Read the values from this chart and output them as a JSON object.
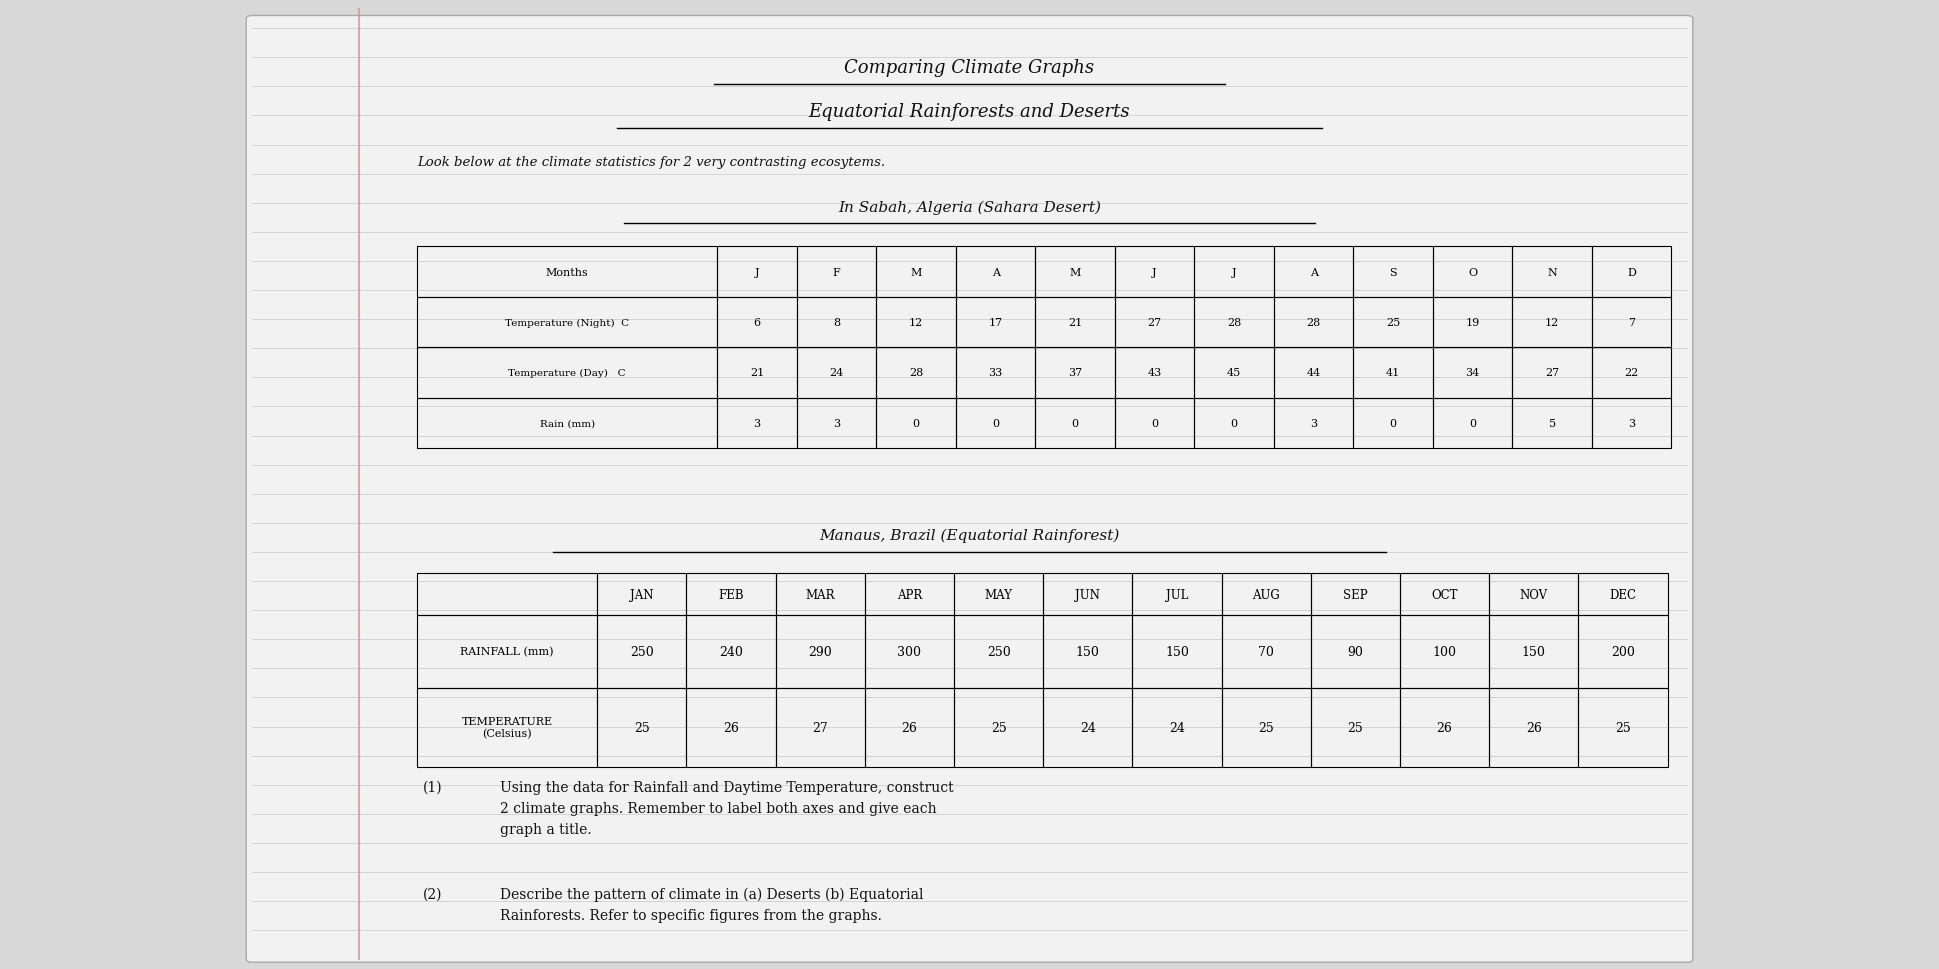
{
  "title1": "Comparing Climate Graphs",
  "title2": "Equatorial Rainforests and Deserts",
  "subtitle": "Look below at the climate statistics for 2 very contrasting ecosytems.",
  "section1_title": "In Sabah, Algeria (Sahara Desert)",
  "section2_title": "Manaus, Brazil (Equatorial Rainforest)",
  "algeria_months": [
    "J",
    "F",
    "M",
    "A",
    "M",
    "J",
    "J",
    "A",
    "S",
    "O",
    "N",
    "D"
  ],
  "algeria_temp_night": [
    6,
    8,
    12,
    17,
    21,
    27,
    28,
    28,
    25,
    19,
    12,
    7
  ],
  "algeria_temp_day": [
    21,
    24,
    28,
    33,
    37,
    43,
    45,
    44,
    41,
    34,
    27,
    22
  ],
  "algeria_rain": [
    3,
    3,
    0,
    0,
    0,
    0,
    0,
    3,
    0,
    0,
    5,
    3
  ],
  "manaus_months": [
    "JAN",
    "FEB",
    "MAR",
    "APR",
    "MAY",
    "JUN",
    "JUL",
    "AUG",
    "SEP",
    "OCT",
    "NOV",
    "DEC"
  ],
  "manaus_rainfall": [
    250,
    240,
    290,
    300,
    250,
    150,
    150,
    70,
    90,
    100,
    150,
    200
  ],
  "manaus_temperature": [
    25,
    26,
    27,
    26,
    25,
    24,
    24,
    25,
    25,
    26,
    26,
    25
  ],
  "question1_num": "(1)",
  "question1_text": "Using the data for Rainfall and Daytime Temperature, construct\n2 climate graphs. Remember to label both axes and give each\ngraph a title.",
  "question2_num": "(2)",
  "question2_text": "Describe the pattern of climate in (a) Deserts (b) Equatorial\nRainforests. Refer to specific figures from the graphs.",
  "bg_color": "#d8d8d8",
  "paper_color": "#f2f2f2",
  "text_color": "#111111",
  "line_color": "#b0b8c8",
  "margin_color": "#cc9999"
}
